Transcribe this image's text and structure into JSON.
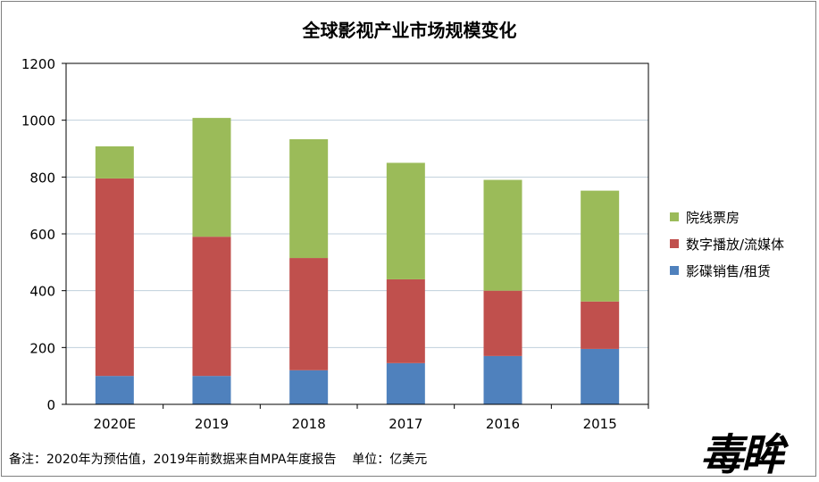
{
  "chart_data": {
    "type": "bar",
    "stacked": true,
    "title": "全球影视产业市场规模变化",
    "categories": [
      "2020E",
      "2019",
      "2018",
      "2017",
      "2016",
      "2015"
    ],
    "series": [
      {
        "name": "影碟销售/租赁",
        "color": "#4f81bd",
        "values": [
          100,
          100,
          120,
          145,
          170,
          195
        ]
      },
      {
        "name": "数字播放/流媒体",
        "color": "#c0504d",
        "values": [
          695,
          490,
          395,
          295,
          230,
          167
        ]
      },
      {
        "name": "院线票房",
        "color": "#9bbb59",
        "values": [
          113,
          418,
          418,
          410,
          390,
          390
        ]
      }
    ],
    "yticks": [
      "0",
      "200",
      "400",
      "600",
      "800",
      "1000",
      "1200"
    ],
    "ylim": [
      0,
      1200
    ],
    "grid": true,
    "legend_position": "right"
  },
  "footnote": "备注：2020年为预估值，2019年前数据来自MPA年度报告    单位：亿美元",
  "watermark": "毒眸"
}
